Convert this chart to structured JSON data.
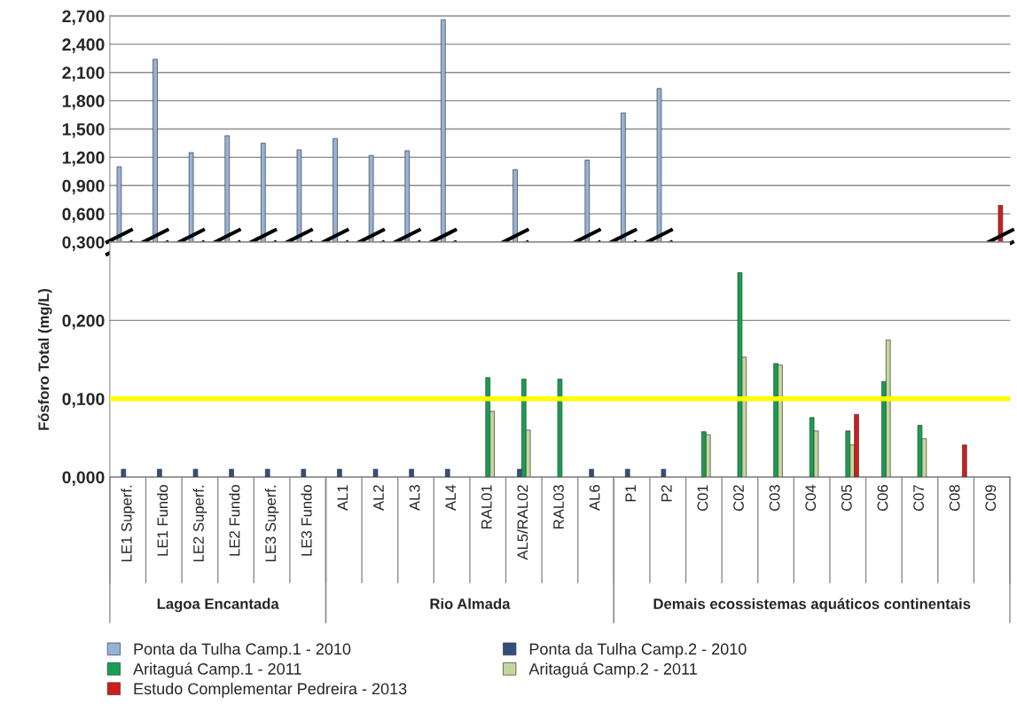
{
  "chart_data": [
    {
      "type": "bar",
      "tick_labels": "y",
      "categories": [
        null,
        null,
        null,
        null,
        null,
        null,
        null,
        null,
        null,
        null,
        null,
        null,
        null,
        null,
        null,
        null,
        null,
        null,
        null,
        null,
        null,
        null,
        null,
        null,
        null
      ],
      "series": [
        {
          "color": "#95b3d7",
          "values": [
            1.1,
            2.24,
            1.25,
            1.43,
            1.35,
            1.28,
            1.4,
            1.22,
            1.27,
            2.66,
            null,
            1.07,
            null,
            1.17,
            1.67,
            1.93,
            null,
            null,
            null,
            null,
            null,
            null,
            null,
            null,
            null
          ]
        },
        {
          "color": "#2f4f7f",
          "values": [
            null,
            null,
            null,
            null,
            null,
            null,
            null,
            null,
            null,
            null,
            null,
            null,
            null,
            null,
            null,
            null,
            null,
            null,
            null,
            null,
            null,
            null,
            null,
            null,
            null
          ]
        },
        {
          "color": "#12a150",
          "values": [
            null,
            null,
            null,
            null,
            null,
            null,
            null,
            null,
            null,
            null,
            null,
            null,
            null,
            null,
            null,
            null,
            null,
            null,
            null,
            null,
            null,
            null,
            null,
            null,
            null
          ]
        },
        {
          "color": "#c4d79b",
          "values": [
            null,
            null,
            null,
            null,
            null,
            null,
            null,
            null,
            null,
            null,
            null,
            null,
            null,
            null,
            null,
            null,
            null,
            null,
            null,
            null,
            null,
            null,
            null,
            null,
            null
          ]
        },
        {
          "color": "#d01c1c",
          "values": [
            null,
            null,
            null,
            null,
            null,
            null,
            null,
            null,
            null,
            null,
            null,
            null,
            null,
            null,
            null,
            null,
            null,
            null,
            null,
            null,
            null,
            null,
            null,
            null,
            0.69
          ]
        }
      ],
      "ylim": [
        0.3,
        2.7
      ],
      "yticks": [
        {
          "value": 0.3,
          "label": "0,300"
        },
        {
          "value": 0.6,
          "label": "0,600"
        },
        {
          "value": 0.9,
          "label": "0,900"
        },
        {
          "value": 1.2,
          "label": "1,200"
        },
        {
          "value": 1.5,
          "label": "1,500"
        },
        {
          "value": 1.8,
          "label": "1,800"
        },
        {
          "value": 2.1,
          "label": "2,100"
        },
        {
          "value": 2.4,
          "label": "2,400"
        },
        {
          "value": 2.7,
          "label": "2,700"
        }
      ],
      "grid": "y"
    },
    {
      "type": "bar",
      "ylabel": "Fósforo Total (mg/L)",
      "categories": [
        "LE1 Superf.",
        "LE1 Fundo",
        "LE2 Superf.",
        "LE2 Fundo",
        "LE3 Superf.",
        "LE3 Fundo",
        "AL1",
        "AL2",
        "AL3",
        "AL4",
        "RAL01",
        "AL5/RAL02",
        "RAL03",
        "AL6",
        "P1",
        "P2",
        "C01",
        "C02",
        "C03",
        "C04",
        "C05",
        "C06",
        "C07",
        "C08",
        "C09"
      ],
      "series": [
        {
          "name": "Ponta da Tulha Camp.1 - 2010",
          "color": "#95b3d7",
          "values": [
            null,
            null,
            null,
            null,
            null,
            null,
            null,
            null,
            null,
            null,
            null,
            null,
            null,
            null,
            null,
            null,
            null,
            null,
            null,
            null,
            null,
            null,
            null,
            null,
            null
          ]
        },
        {
          "name": "Ponta da Tulha Camp.2 - 2010",
          "color": "#2f4f7f",
          "values": [
            0.01,
            0.01,
            0.01,
            0.01,
            0.01,
            0.01,
            0.01,
            0.01,
            0.01,
            0.01,
            null,
            0.01,
            null,
            0.01,
            0.01,
            0.01,
            null,
            null,
            null,
            null,
            null,
            null,
            null,
            null,
            null
          ]
        },
        {
          "name": "Aritaguá Camp.1 - 2011",
          "color": "#12a150",
          "values": [
            null,
            null,
            null,
            null,
            null,
            null,
            null,
            null,
            null,
            null,
            0.127,
            0.125,
            0.125,
            null,
            null,
            null,
            0.058,
            0.261,
            0.145,
            0.076,
            0.059,
            0.122,
            0.066,
            null,
            null
          ]
        },
        {
          "name": "Aritaguá Camp.2 - 2011",
          "color": "#c4d79b",
          "values": [
            null,
            null,
            null,
            null,
            null,
            null,
            null,
            null,
            null,
            null,
            0.084,
            0.06,
            null,
            null,
            null,
            null,
            0.054,
            0.153,
            0.143,
            0.059,
            0.041,
            0.175,
            0.049,
            null,
            null
          ]
        },
        {
          "name": "Estudo Complementar Pedreira - 2013",
          "color": "#d01c1c",
          "values": [
            null,
            null,
            null,
            null,
            null,
            null,
            null,
            null,
            null,
            null,
            null,
            null,
            null,
            null,
            null,
            null,
            null,
            null,
            null,
            null,
            0.08,
            null,
            null,
            0.041,
            null
          ]
        }
      ],
      "ylim": [
        0,
        0.3
      ],
      "yticks": [
        {
          "value": 0,
          "label": "0,000"
        },
        {
          "value": 0.1,
          "label": "0,100"
        },
        {
          "value": 0.2,
          "label": "0,200"
        },
        {
          "value": 0.3,
          "label": null
        }
      ],
      "ref_lines": [
        {
          "axis": "y",
          "value": 0.1,
          "color": "#ffff00"
        }
      ],
      "annotations": [
        "Lagoa Encantada",
        "Rio Almada",
        "Demais ecossistemas aquáticos continentais"
      ],
      "grid": "y",
      "legend": "bottom"
    }
  ]
}
